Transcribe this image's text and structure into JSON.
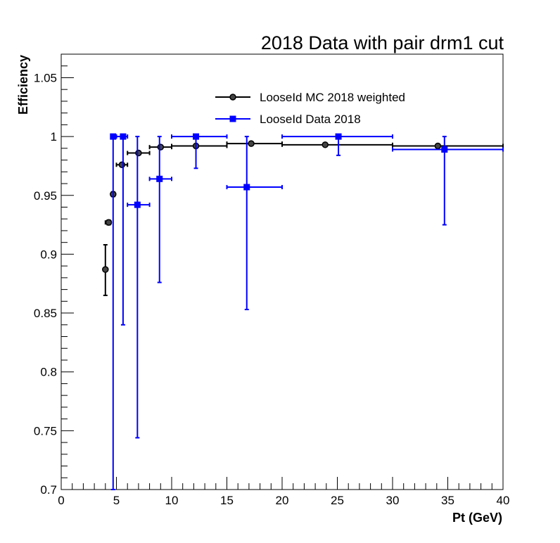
{
  "chart_data": {
    "type": "scatter",
    "title": "2018 Data with pair drm1 cut",
    "xlabel": "Pt (GeV)",
    "ylabel": "Efficiency",
    "xlim": [
      0,
      40
    ],
    "ylim": [
      0.7,
      1.07
    ],
    "x_ticks": [
      "0",
      "5",
      "10",
      "15",
      "20",
      "25",
      "30",
      "35",
      "40"
    ],
    "y_ticks": [
      "0.7",
      "0.75",
      "0.8",
      "0.85",
      "0.9",
      "0.95",
      "1",
      "1.05"
    ],
    "grid": false,
    "legend_position": "top-center",
    "series": [
      {
        "name": "LooseId MC 2018 weighted",
        "color": "#000000",
        "marker": "circle",
        "points": [
          {
            "x": 4.0,
            "xlo": 4.0,
            "xhi": 4.0,
            "y": 0.887,
            "ylo": 0.865,
            "yhi": 0.908
          },
          {
            "x": 4.3,
            "xlo": 4.0,
            "xhi": 4.5,
            "y": 0.927,
            "ylo": 0.925,
            "yhi": 0.929
          },
          {
            "x": 4.7,
            "xlo": 4.6,
            "xhi": 4.8,
            "y": 0.951,
            "ylo": 0.949,
            "yhi": 0.953
          },
          {
            "x": 5.5,
            "xlo": 5.0,
            "xhi": 6.0,
            "y": 0.976,
            "ylo": 0.975,
            "yhi": 0.977
          },
          {
            "x": 7.0,
            "xlo": 6.0,
            "xhi": 8.0,
            "y": 0.986,
            "ylo": 0.985,
            "yhi": 0.987
          },
          {
            "x": 9.0,
            "xlo": 8.0,
            "xhi": 10.0,
            "y": 0.991,
            "ylo": 0.99,
            "yhi": 0.992
          },
          {
            "x": 12.2,
            "xlo": 10.0,
            "xhi": 15.0,
            "y": 0.992,
            "ylo": 0.991,
            "yhi": 0.993
          },
          {
            "x": 17.2,
            "xlo": 15.0,
            "xhi": 20.0,
            "y": 0.994,
            "ylo": 0.993,
            "yhi": 0.995
          },
          {
            "x": 23.9,
            "xlo": 20.0,
            "xhi": 30.0,
            "y": 0.993,
            "ylo": 0.992,
            "yhi": 0.994
          },
          {
            "x": 34.1,
            "xlo": 30.0,
            "xhi": 40.0,
            "y": 0.992,
            "ylo": 0.991,
            "yhi": 0.993
          }
        ]
      },
      {
        "name": "LooseId Data 2018",
        "color": "#0000ff",
        "marker": "square",
        "points": [
          {
            "x": 4.7,
            "xlo": 4.5,
            "xhi": 5.0,
            "y": 1.0,
            "ylo": 0.7,
            "yhi": 1.0
          },
          {
            "x": 5.6,
            "xlo": 5.0,
            "xhi": 6.0,
            "y": 1.0,
            "ylo": 0.84,
            "yhi": 1.0
          },
          {
            "x": 6.9,
            "xlo": 6.0,
            "xhi": 8.0,
            "y": 0.942,
            "ylo": 0.744,
            "yhi": 1.0
          },
          {
            "x": 8.9,
            "xlo": 8.0,
            "xhi": 10.0,
            "y": 0.964,
            "ylo": 0.876,
            "yhi": 1.0
          },
          {
            "x": 12.2,
            "xlo": 10.0,
            "xhi": 15.0,
            "y": 1.0,
            "ylo": 0.973,
            "yhi": 1.0
          },
          {
            "x": 16.8,
            "xlo": 15.0,
            "xhi": 20.0,
            "y": 0.957,
            "ylo": 0.853,
            "yhi": 1.0
          },
          {
            "x": 25.1,
            "xlo": 20.0,
            "xhi": 30.0,
            "y": 1.0,
            "ylo": 0.984,
            "yhi": 1.0
          },
          {
            "x": 34.7,
            "xlo": 30.0,
            "xhi": 40.0,
            "y": 0.989,
            "ylo": 0.925,
            "yhi": 1.0
          }
        ]
      }
    ]
  }
}
